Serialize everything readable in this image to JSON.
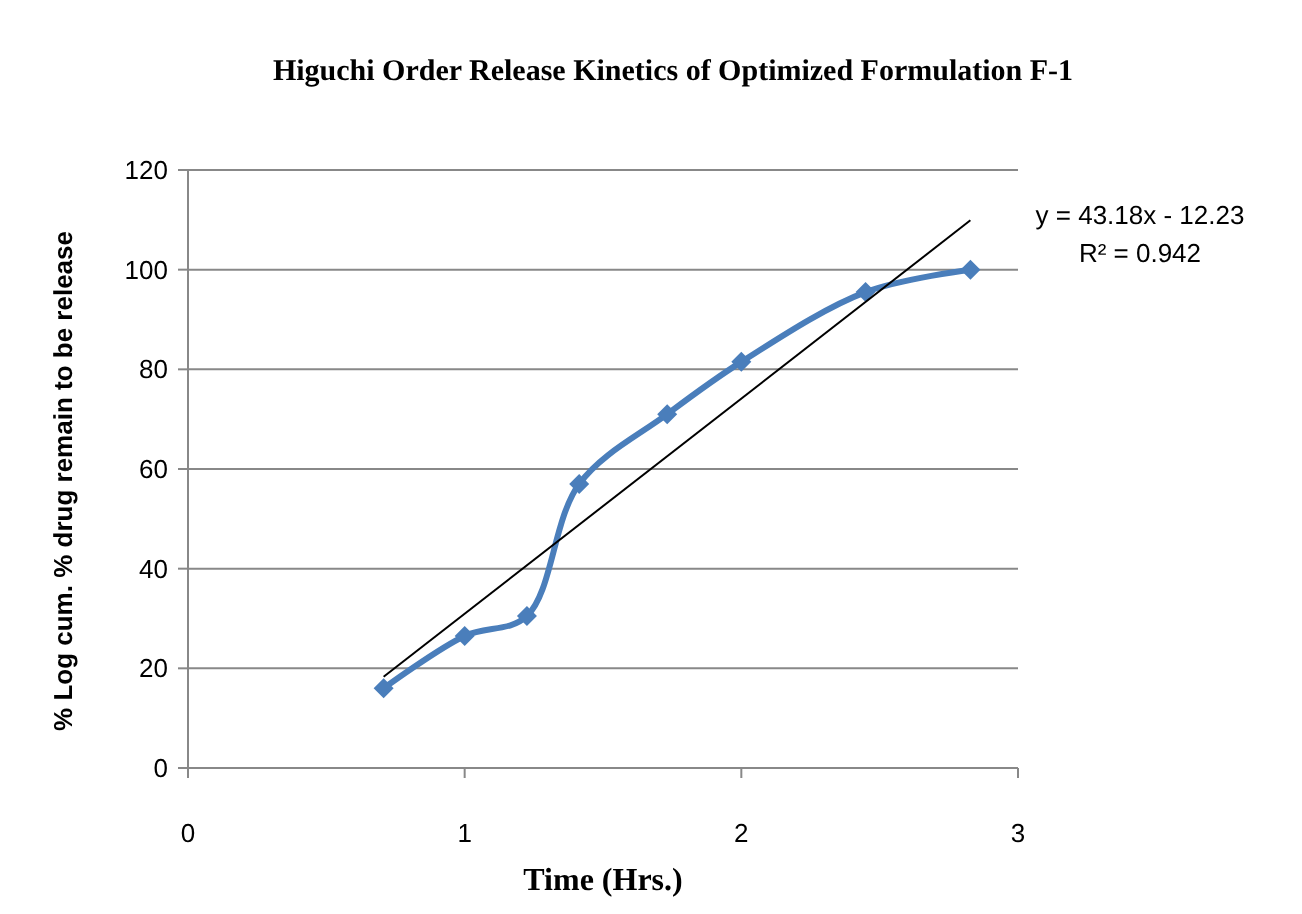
{
  "chart_data": {
    "type": "line",
    "title": "Higuchi Order Release Kinetics of Optimized Formulation F-1",
    "xlabel": "Time (Hrs.)",
    "ylabel": "% Log cum. % drug remain to be release",
    "xlim": [
      0,
      3
    ],
    "xticks": [
      0,
      1,
      2,
      3
    ],
    "ylim": [
      0,
      120
    ],
    "yticks": [
      0,
      20,
      40,
      60,
      80,
      100,
      120
    ],
    "grid": "y",
    "marker": "diamond",
    "line_style": "solid",
    "annotations": [
      "y = 43.18x - 12.23",
      "R² = 0.942"
    ],
    "series": [
      {
        "color": "#4a7ebb",
        "x": [
          0.707,
          1,
          1.225,
          1.414,
          1.732,
          2,
          2.449,
          2.828
        ],
        "values": [
          16,
          26.5,
          30.5,
          57,
          71,
          81.5,
          95.5,
          100
        ]
      },
      {
        "type": "line",
        "marker": "none",
        "color": "#000000",
        "x": [
          0.707,
          2.828
        ],
        "values": [
          18.3,
          109.9
        ]
      }
    ]
  }
}
